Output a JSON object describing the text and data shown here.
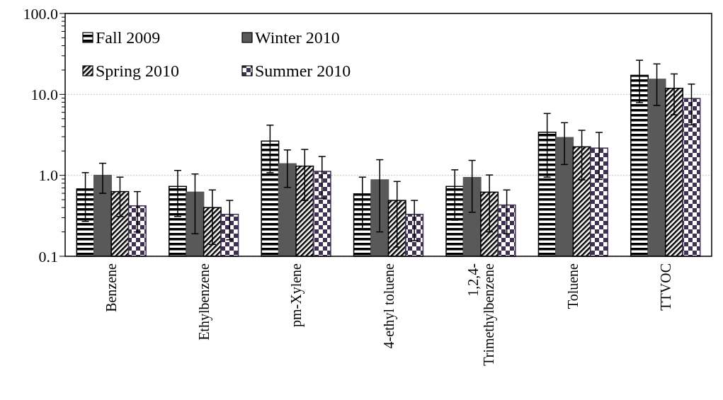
{
  "chart_data": {
    "type": "bar",
    "categories": [
      "Benzene",
      "Ethylbenzene",
      "pm-Xylene",
      "4-ethyl toluene",
      "1,2,4-Trimethylbenzene",
      "Toluene",
      "TTVOC"
    ],
    "series": [
      {
        "name": "Fall 2009",
        "color": "#000000",
        "values": [
          0.68,
          0.73,
          2.65,
          0.59,
          0.73,
          3.41,
          17.2
        ],
        "errors": [
          [
            0.27,
            1.08
          ],
          [
            0.31,
            1.15
          ],
          [
            1.08,
            4.17
          ],
          [
            0.22,
            0.95
          ],
          [
            0.28,
            1.17
          ],
          [
            0.95,
            5.81
          ],
          [
            7.9,
            26.4
          ]
        ]
      },
      {
        "name": "Winter 2010",
        "color": "#595959",
        "values": [
          1.0,
          0.62,
          1.39,
          0.88,
          0.94,
          2.93,
          15.4
        ],
        "errors": [
          [
            0.6,
            1.41
          ],
          [
            0.19,
            1.04
          ],
          [
            0.71,
            2.06
          ],
          [
            0.2,
            1.56
          ],
          [
            0.35,
            1.53
          ],
          [
            1.36,
            4.47
          ],
          [
            7.3,
            23.8
          ]
        ]
      },
      {
        "name": "Spring 2010",
        "color": "#000000",
        "values": [
          0.63,
          0.4,
          1.3,
          0.49,
          0.62,
          2.25,
          11.9
        ],
        "errors": [
          [
            0.31,
            0.95
          ],
          [
            0.14,
            0.66
          ],
          [
            0.49,
            2.09
          ],
          [
            0.13,
            0.84
          ],
          [
            0.2,
            1.01
          ],
          [
            0.88,
            3.6
          ],
          [
            5.6,
            17.9
          ]
        ]
      },
      {
        "name": "Summer 2010",
        "color": "#3f3151",
        "values": [
          0.42,
          0.33,
          1.12,
          0.33,
          0.43,
          2.17,
          8.9
        ],
        "errors": [
          [
            0.2,
            0.63
          ],
          [
            0.16,
            0.49
          ],
          [
            0.52,
            1.71
          ],
          [
            0.156,
            0.49
          ],
          [
            0.19,
            0.66
          ],
          [
            0.89,
            3.39
          ],
          [
            4.2,
            13.4
          ]
        ]
      }
    ],
    "log": true,
    "ylim": [
      0.1,
      100
    ],
    "yticks": [
      {
        "value": 0.1,
        "label": "0.1"
      },
      {
        "value": 0.2,
        "label": null
      },
      {
        "value": 0.3,
        "label": null
      },
      {
        "value": 0.4,
        "label": null
      },
      {
        "value": 0.5,
        "label": null
      },
      {
        "value": 0.6,
        "label": null
      },
      {
        "value": 0.7,
        "label": null
      },
      {
        "value": 0.8,
        "label": null
      },
      {
        "value": 0.9,
        "label": null
      },
      {
        "value": 1,
        "label": "1.0"
      },
      {
        "value": 2,
        "label": null
      },
      {
        "value": 3,
        "label": null
      },
      {
        "value": 4,
        "label": null
      },
      {
        "value": 5,
        "label": null
      },
      {
        "value": 6,
        "label": null
      },
      {
        "value": 7,
        "label": null
      },
      {
        "value": 8,
        "label": null
      },
      {
        "value": 9,
        "label": null
      },
      {
        "value": 10,
        "label": "10.0"
      },
      {
        "value": 20,
        "label": null
      },
      {
        "value": 30,
        "label": null
      },
      {
        "value": 40,
        "label": null
      },
      {
        "value": 50,
        "label": null
      },
      {
        "value": 60,
        "label": null
      },
      {
        "value": 70,
        "label": null
      },
      {
        "value": 80,
        "label": null
      },
      {
        "value": 90,
        "label": null
      },
      {
        "value": 100,
        "label": "100.0"
      }
    ],
    "grid": "y",
    "legend": "top left"
  }
}
